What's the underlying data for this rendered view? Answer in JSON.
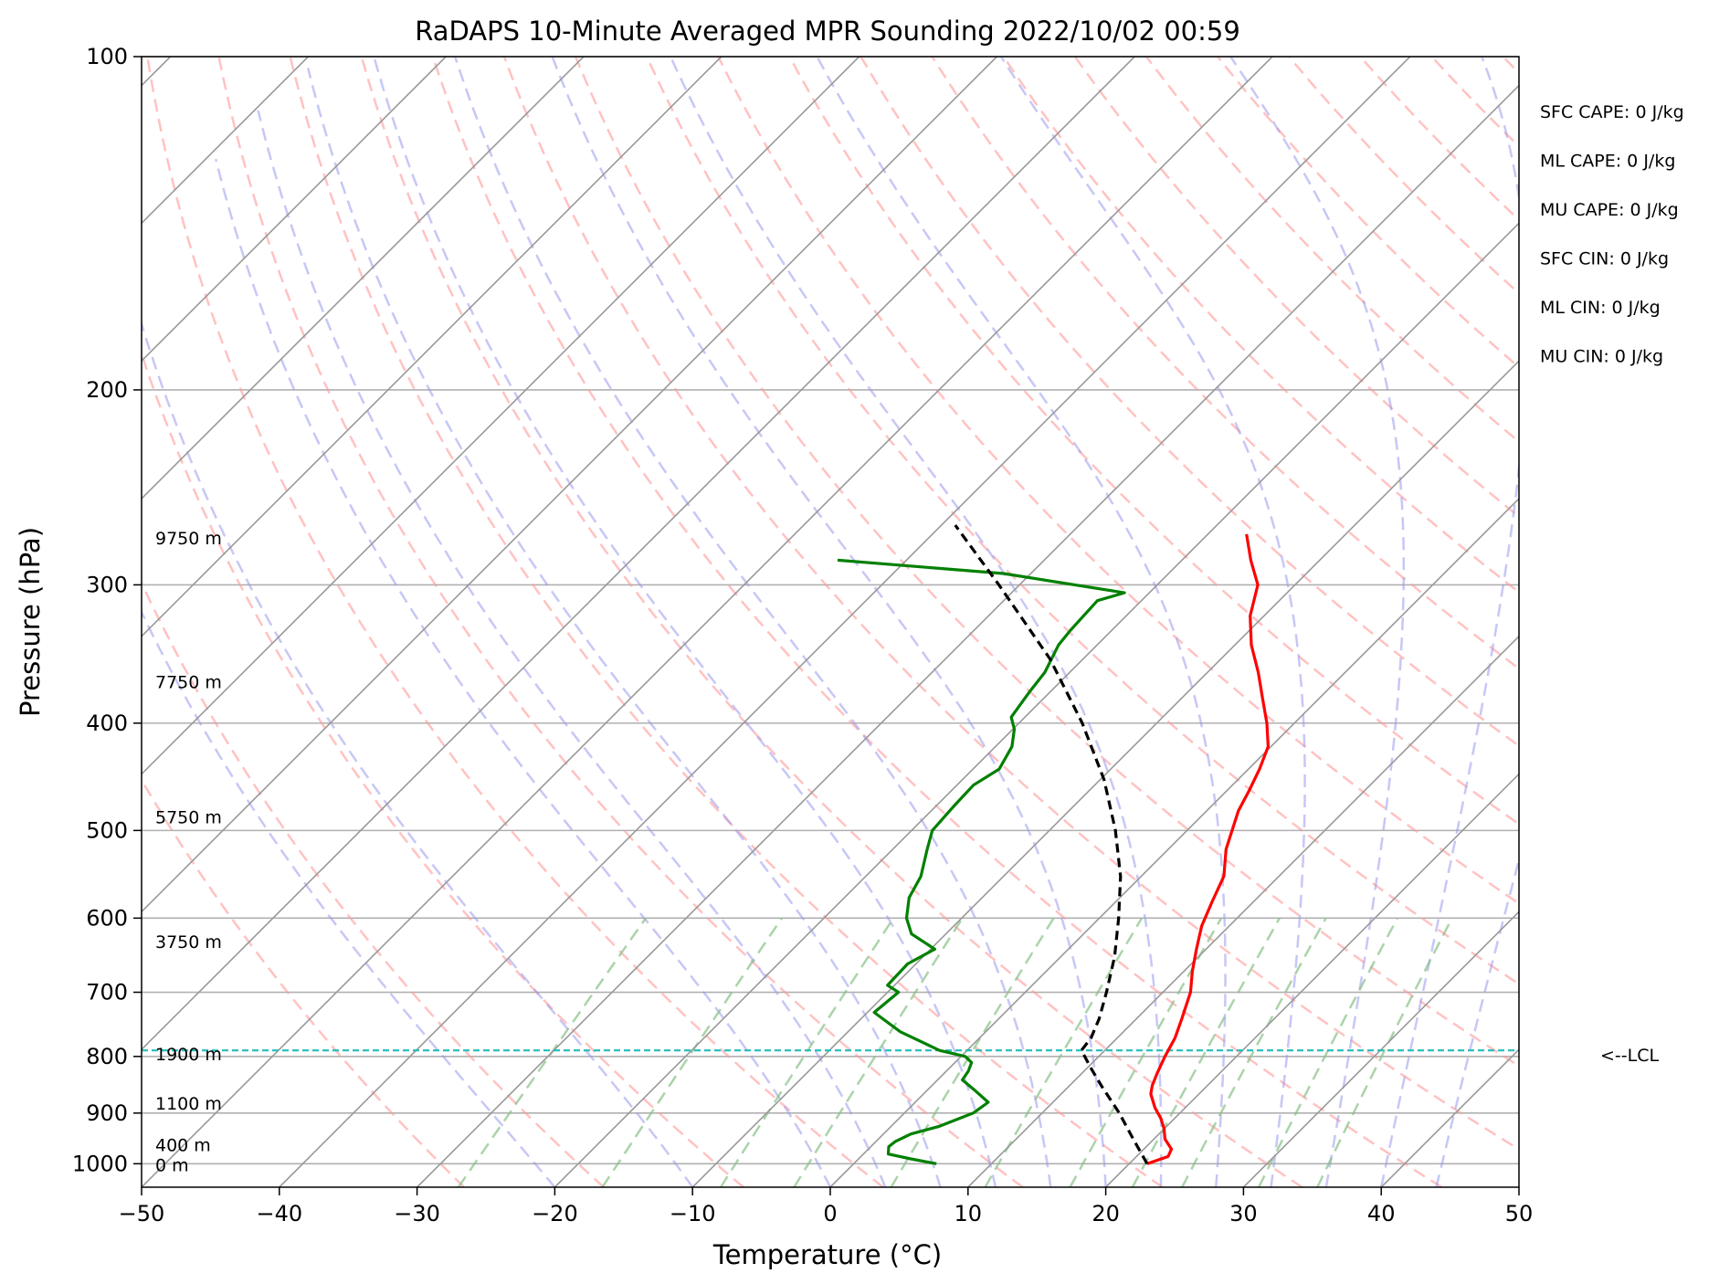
{
  "chart_data": {
    "type": "line",
    "title": "RaDAPS 10-Minute Averaged MPR Sounding 2022/10/02 00:59",
    "xlabel": "Temperature (°C)",
    "ylabel": "Pressure (hPa)",
    "xlim": [
      -50,
      50
    ],
    "ylim": [
      1050,
      100
    ],
    "y_scale": "log",
    "x_ticks": [
      -50,
      -40,
      -30,
      -20,
      -10,
      0,
      10,
      20,
      30,
      40,
      50
    ],
    "x_tick_labels": [
      "−50",
      "−40",
      "−30",
      "−20",
      "−10",
      "0",
      "10",
      "20",
      "30",
      "40",
      "50"
    ],
    "y_ticks": [
      100,
      200,
      300,
      400,
      500,
      600,
      700,
      800,
      900,
      1000
    ],
    "y_tick_labels": [
      "100",
      "200",
      "300",
      "400",
      "500",
      "600",
      "700",
      "800",
      "900",
      "1000"
    ],
    "skew": true,
    "grid": true,
    "series": [
      {
        "role": "temperature",
        "color": "#ff0000",
        "points": [
          [
            1000,
            21.3
          ],
          [
            985,
            22.3
          ],
          [
            970,
            22.0
          ],
          [
            950,
            20.8
          ],
          [
            930,
            20.0
          ],
          [
            910,
            19.0
          ],
          [
            890,
            17.8
          ],
          [
            865,
            16.5
          ],
          [
            850,
            16.0
          ],
          [
            830,
            15.5
          ],
          [
            800,
            14.8
          ],
          [
            770,
            14.2
          ],
          [
            740,
            13.3
          ],
          [
            700,
            12.0
          ],
          [
            670,
            10.6
          ],
          [
            640,
            9.3
          ],
          [
            610,
            8.0
          ],
          [
            580,
            7.0
          ],
          [
            550,
            6.0
          ],
          [
            520,
            4.2
          ],
          [
            480,
            2.3
          ],
          [
            460,
            1.6
          ],
          [
            440,
            0.8
          ],
          [
            420,
            -0.2
          ],
          [
            400,
            -2.0
          ],
          [
            380,
            -4.1
          ],
          [
            360,
            -6.3
          ],
          [
            340,
            -8.8
          ],
          [
            320,
            -11.0
          ],
          [
            300,
            -12.7
          ],
          [
            285,
            -15.0
          ],
          [
            270,
            -17.2
          ]
        ]
      },
      {
        "role": "dewpoint",
        "color": "#008000",
        "points": [
          [
            1000,
            6.0
          ],
          [
            990,
            3.8
          ],
          [
            980,
            1.8
          ],
          [
            965,
            1.3
          ],
          [
            955,
            1.4
          ],
          [
            940,
            2.0
          ],
          [
            925,
            3.5
          ],
          [
            900,
            5.0
          ],
          [
            880,
            5.3
          ],
          [
            860,
            3.6
          ],
          [
            840,
            1.8
          ],
          [
            825,
            1.6
          ],
          [
            810,
            1.2
          ],
          [
            800,
            0.3
          ],
          [
            790,
            -2.0
          ],
          [
            760,
            -6.2
          ],
          [
            730,
            -9.5
          ],
          [
            700,
            -9.2
          ],
          [
            690,
            -10.5
          ],
          [
            660,
            -10.6
          ],
          [
            640,
            -9.7
          ],
          [
            620,
            -12.5
          ],
          [
            600,
            -14.0
          ],
          [
            575,
            -15.3
          ],
          [
            550,
            -16.0
          ],
          [
            520,
            -17.5
          ],
          [
            500,
            -18.5
          ],
          [
            475,
            -18.7
          ],
          [
            455,
            -18.8
          ],
          [
            440,
            -18.1
          ],
          [
            420,
            -18.8
          ],
          [
            405,
            -19.9
          ],
          [
            395,
            -21.0
          ],
          [
            375,
            -21.5
          ],
          [
            360,
            -21.8
          ],
          [
            340,
            -22.8
          ],
          [
            330,
            -23.0
          ],
          [
            310,
            -23.2
          ],
          [
            305,
            -21.8
          ],
          [
            293,
            -32.0
          ],
          [
            285,
            -45.0
          ]
        ]
      },
      {
        "role": "parcel",
        "color": "#000000",
        "dashed": true,
        "points": [
          [
            1000,
            21.3
          ],
          [
            950,
            18.5
          ],
          [
            900,
            15.6
          ],
          [
            850,
            12.3
          ],
          [
            820,
            10.3
          ],
          [
            790,
            8.3
          ],
          [
            770,
            8.1
          ],
          [
            740,
            7.3
          ],
          [
            700,
            5.9
          ],
          [
            650,
            3.9
          ],
          [
            600,
            1.4
          ],
          [
            550,
            -1.5
          ],
          [
            500,
            -5.2
          ],
          [
            450,
            -9.7
          ],
          [
            400,
            -15.4
          ],
          [
            350,
            -22.4
          ],
          [
            300,
            -31.5
          ],
          [
            265,
            -39.0
          ]
        ]
      }
    ],
    "lcl": {
      "pressure": 790,
      "label": "<--LCL",
      "color": "#22bbbb"
    },
    "height_labels": [
      "9750 m",
      "7750 m",
      "5750 m",
      "3750 m",
      "1900 m",
      "1100 m",
      "400 m",
      "0 m"
    ],
    "height_label_pressures": [
      272,
      367,
      486,
      630,
      796,
      882,
      961,
      1002
    ],
    "indices": [
      {
        "text": "SFC CAPE: 0 J/kg"
      },
      {
        "text": "ML CAPE: 0 J/kg"
      },
      {
        "text": "MU CAPE: 0 J/kg"
      },
      {
        "text": "SFC CIN: 0 J/kg"
      },
      {
        "text": "ML CIN: 0 J/kg"
      },
      {
        "text": "MU CIN: 0 J/kg"
      }
    ],
    "reference_lines": {
      "dry_adiabats_color": "#ff9999",
      "moist_adiabats_color": "#9999ee",
      "mixing_ratio_color": "#88c088",
      "isotherm_color": "#999999"
    }
  }
}
